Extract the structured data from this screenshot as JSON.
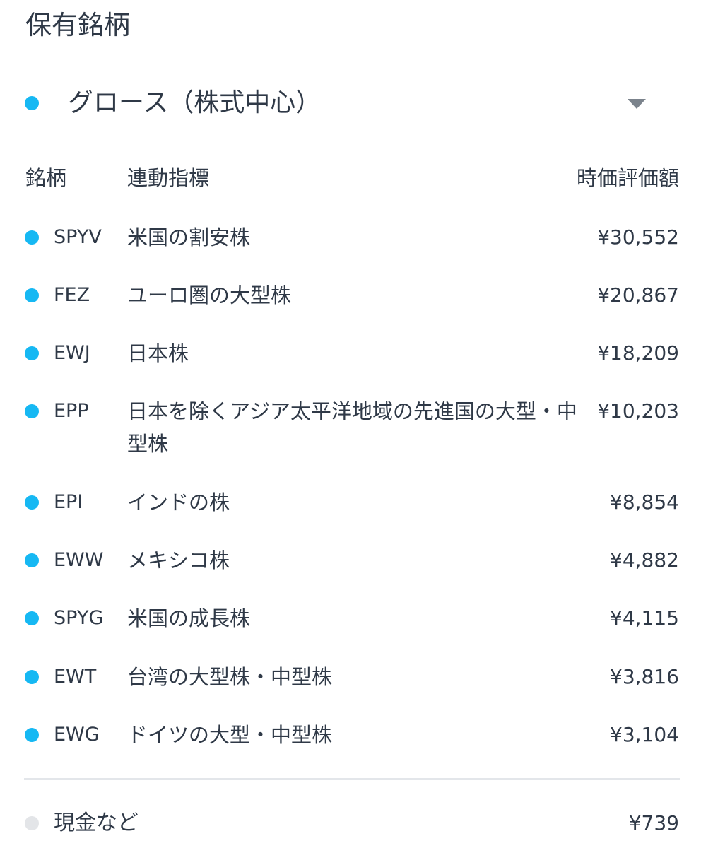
{
  "page": {
    "title": "保有銘柄"
  },
  "group": {
    "label": "グロース（株式中心）",
    "dot_color": "#16b8f3",
    "icon": "chevron-down-icon"
  },
  "table": {
    "headers": {
      "ticker": "銘柄",
      "index": "連動指標",
      "value": "時価評価額"
    },
    "rows": [
      {
        "ticker": "SPYV",
        "index": "米国の割安株",
        "value": "¥30,552"
      },
      {
        "ticker": "FEZ",
        "index": "ユーロ圏の大型株",
        "value": "¥20,867"
      },
      {
        "ticker": "EWJ",
        "index": "日本株",
        "value": "¥18,209"
      },
      {
        "ticker": "EPP",
        "index": "日本を除くアジア太平洋地域の先進国の大型・中型株",
        "value": "¥10,203"
      },
      {
        "ticker": "EPI",
        "index": "インドの株",
        "value": "¥8,854"
      },
      {
        "ticker": "EWW",
        "index": "メキシコ株",
        "value": "¥4,882"
      },
      {
        "ticker": "SPYG",
        "index": "米国の成長株",
        "value": "¥4,115"
      },
      {
        "ticker": "EWT",
        "index": "台湾の大型株・中型株",
        "value": "¥3,816"
      },
      {
        "ticker": "EWG",
        "index": "ドイツの大型・中型株",
        "value": "¥3,104"
      }
    ],
    "row_dot_color": "#16b8f3"
  },
  "cash": {
    "label": "現金など",
    "value": "¥739",
    "dot_color": "#e3e5e8"
  }
}
